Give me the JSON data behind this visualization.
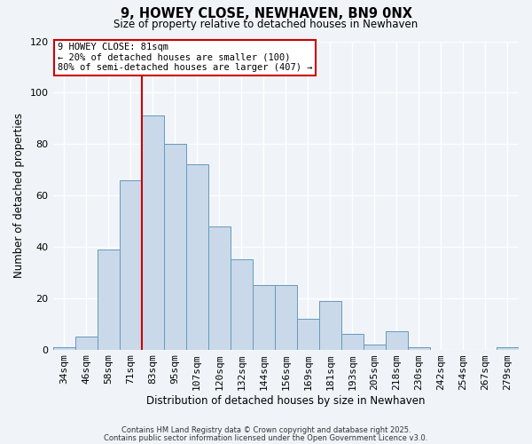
{
  "title": "9, HOWEY CLOSE, NEWHAVEN, BN9 0NX",
  "subtitle": "Size of property relative to detached houses in Newhaven",
  "xlabel": "Distribution of detached houses by size in Newhaven",
  "ylabel": "Number of detached properties",
  "bin_labels": [
    "34sqm",
    "46sqm",
    "58sqm",
    "71sqm",
    "83sqm",
    "95sqm",
    "107sqm",
    "120sqm",
    "132sqm",
    "144sqm",
    "156sqm",
    "169sqm",
    "181sqm",
    "193sqm",
    "205sqm",
    "218sqm",
    "230sqm",
    "242sqm",
    "254sqm",
    "267sqm",
    "279sqm"
  ],
  "bar_heights": [
    1,
    5,
    39,
    66,
    91,
    80,
    72,
    48,
    35,
    25,
    25,
    12,
    19,
    6,
    2,
    7,
    1,
    0,
    0,
    0,
    1
  ],
  "bar_color": "#c9d9ea",
  "bar_edge_color": "#6699bb",
  "vline_x_idx": 4,
  "vline_color": "#cc0000",
  "ylim": [
    0,
    120
  ],
  "yticks": [
    0,
    20,
    40,
    60,
    80,
    100,
    120
  ],
  "annotation_title": "9 HOWEY CLOSE: 81sqm",
  "annotation_line1": "← 20% of detached houses are smaller (100)",
  "annotation_line2": "80% of semi-detached houses are larger (407) →",
  "footnote1": "Contains HM Land Registry data © Crown copyright and database right 2025.",
  "footnote2": "Contains public sector information licensed under the Open Government Licence v3.0.",
  "background_color": "#f0f4f8",
  "grid_color": "#ffffff"
}
